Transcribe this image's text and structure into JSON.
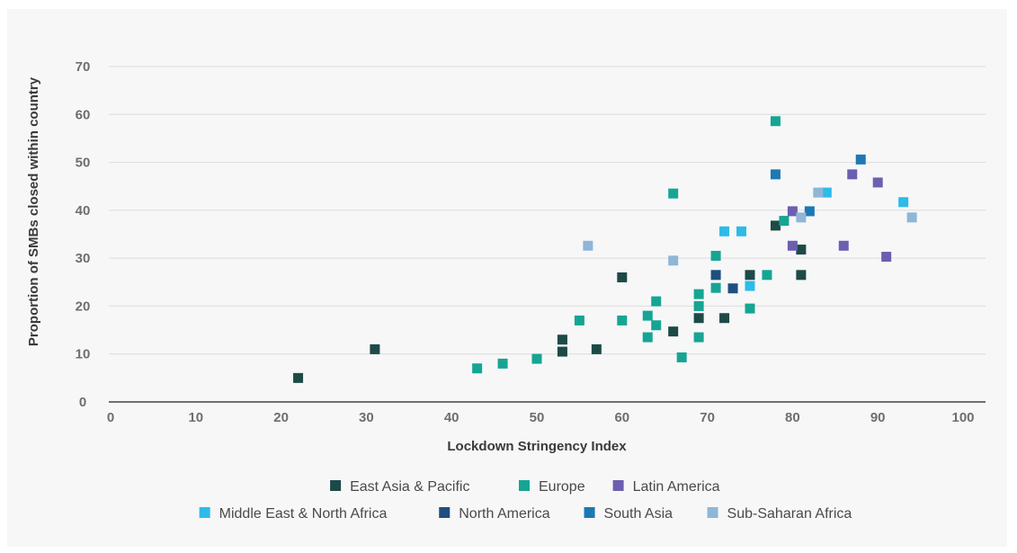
{
  "chart_data": {
    "type": "scatter",
    "title": "",
    "xlabel": "Lockdown Stringency Index",
    "ylabel": "Proportion of SMBs closed within country",
    "xlim": [
      0,
      100
    ],
    "ylim": [
      0,
      70
    ],
    "xticks": [
      0,
      10,
      20,
      30,
      40,
      50,
      60,
      70,
      80,
      90,
      100
    ],
    "yticks": [
      0,
      10,
      20,
      30,
      40,
      50,
      60,
      70
    ],
    "grid": "horizontal",
    "legend_position": "bottom",
    "series": [
      {
        "name": "East Asia & Pacific",
        "color": "#1d4a47",
        "points": [
          [
            22,
            5
          ],
          [
            31,
            11
          ],
          [
            53,
            13
          ],
          [
            53,
            10.5
          ],
          [
            57,
            11
          ],
          [
            60,
            26
          ],
          [
            66,
            14.7
          ],
          [
            69,
            17.5
          ],
          [
            72,
            17.5
          ],
          [
            75,
            26.5
          ],
          [
            78,
            36.8
          ],
          [
            81,
            31.8
          ],
          [
            81,
            26.5
          ]
        ]
      },
      {
        "name": "Europe",
        "color": "#16a593",
        "points": [
          [
            43,
            7
          ],
          [
            46,
            8
          ],
          [
            50,
            9
          ],
          [
            55,
            17
          ],
          [
            60,
            17
          ],
          [
            63,
            18
          ],
          [
            63,
            13.5
          ],
          [
            64,
            21
          ],
          [
            64,
            16
          ],
          [
            66,
            43.5
          ],
          [
            67,
            9.3
          ],
          [
            69,
            22.5
          ],
          [
            69,
            20
          ],
          [
            69,
            13.5
          ],
          [
            71,
            30.5
          ],
          [
            71,
            23.8
          ],
          [
            75,
            19.5
          ],
          [
            77,
            26.5
          ],
          [
            78,
            58.6
          ],
          [
            79,
            37.8
          ]
        ]
      },
      {
        "name": "Latin America",
        "color": "#6b5fb0",
        "points": [
          [
            80,
            39.8
          ],
          [
            80,
            32.6
          ],
          [
            86,
            32.6
          ],
          [
            87,
            47.5
          ],
          [
            90,
            45.8
          ],
          [
            91,
            30.3
          ]
        ]
      },
      {
        "name": "Middle East & North Africa",
        "color": "#2dbbe8",
        "points": [
          [
            72,
            35.6
          ],
          [
            74,
            35.6
          ],
          [
            75,
            24.2
          ],
          [
            84,
            43.7
          ],
          [
            93,
            41.7
          ]
        ]
      },
      {
        "name": "North America",
        "color": "#1e4f80",
        "points": [
          [
            71,
            26.5
          ],
          [
            73,
            23.7
          ]
        ]
      },
      {
        "name": "South Asia",
        "color": "#1d78b4",
        "points": [
          [
            78,
            47.5
          ],
          [
            82,
            39.8
          ],
          [
            88,
            50.6
          ]
        ]
      },
      {
        "name": "Sub-Saharan Africa",
        "color": "#8fb6d7",
        "points": [
          [
            56,
            32.6
          ],
          [
            66,
            29.5
          ],
          [
            81,
            38.5
          ],
          [
            83,
            43.7
          ],
          [
            94,
            38.5
          ]
        ]
      }
    ]
  }
}
